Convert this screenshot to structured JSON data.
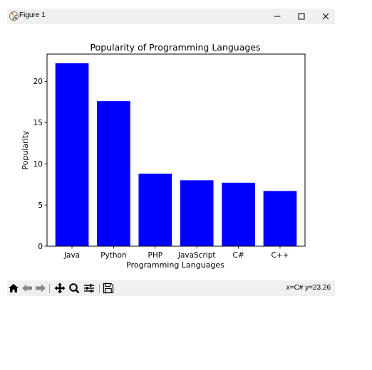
{
  "window": {
    "title": "Figure 1",
    "controls": {
      "minimize": "minimize",
      "maximize": "maximize",
      "close": "close"
    }
  },
  "toolbar": {
    "buttons": [
      {
        "name": "home",
        "icon": "home-icon"
      },
      {
        "name": "back",
        "icon": "back-arrow-icon"
      },
      {
        "name": "forward",
        "icon": "forward-arrow-icon"
      },
      {
        "name": "pan",
        "icon": "move-icon"
      },
      {
        "name": "zoom",
        "icon": "zoom-icon"
      },
      {
        "name": "configure-subplots",
        "icon": "sliders-icon"
      },
      {
        "name": "save",
        "icon": "save-icon"
      }
    ],
    "status": "x=C# y=23.26"
  },
  "chart_data": {
    "type": "bar",
    "title": "Popularity of Programming Languages",
    "xlabel": "Programming Languages",
    "ylabel": "Popularity",
    "categories": [
      "Java",
      "Python",
      "PHP",
      "JavaScript",
      "C#",
      "C++"
    ],
    "values": [
      22.2,
      17.6,
      8.8,
      8.0,
      7.7,
      6.7
    ],
    "ylim": [
      0,
      23.31
    ],
    "yticks": [
      0,
      5,
      10,
      15,
      20
    ],
    "ytick_labels": [
      "0",
      "5",
      "10",
      "15",
      "20"
    ],
    "bar_color": "#0000ff",
    "grid": false
  }
}
